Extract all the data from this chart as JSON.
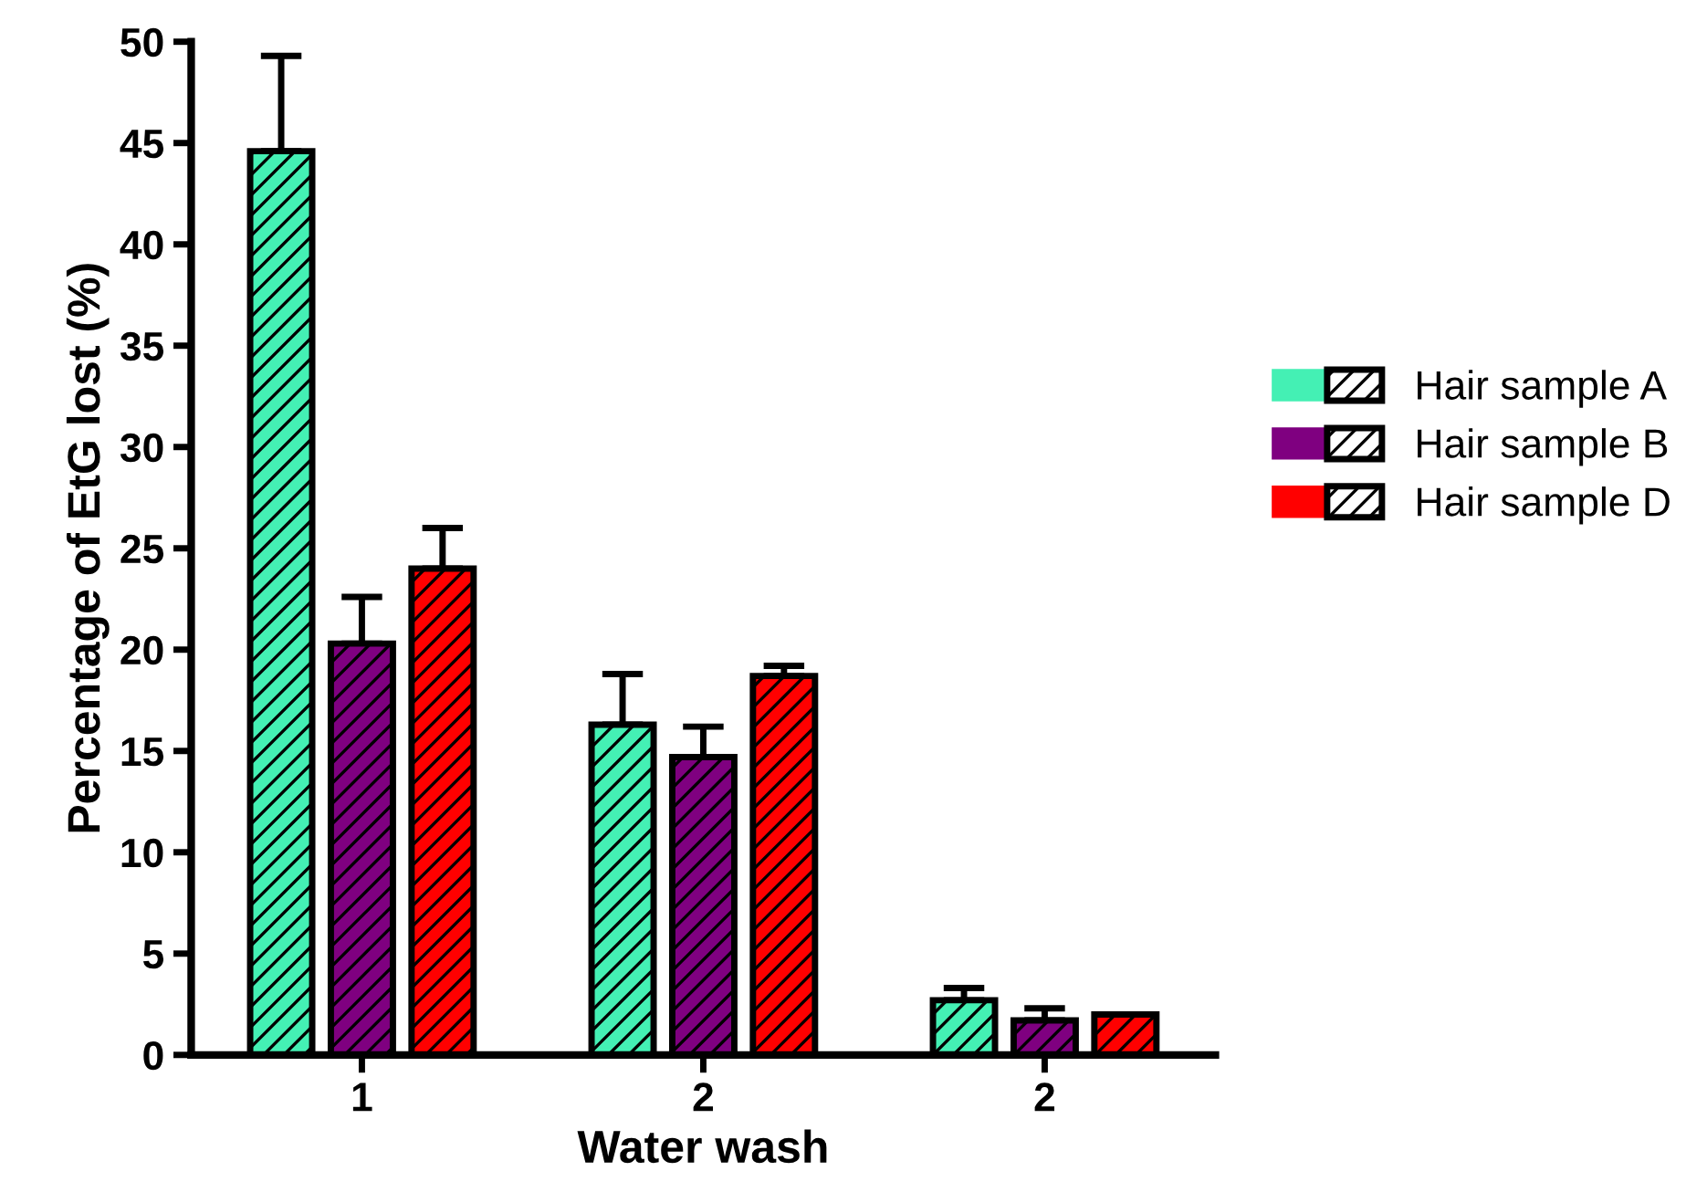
{
  "chart_data": {
    "type": "bar",
    "xlabel": "Water wash",
    "ylabel": "Percentage of EtG lost (%)",
    "categories": [
      "1",
      "2",
      "2"
    ],
    "series": [
      {
        "name": "Hair sample A",
        "color": "#44f0b4",
        "values": [
          44.6,
          16.3,
          2.7
        ],
        "errors": [
          [
            44.6,
            49.3
          ],
          [
            16.3,
            18.8
          ],
          [
            2.7,
            3.3
          ]
        ]
      },
      {
        "name": "Hair sample B",
        "color": "#7f0080",
        "values": [
          20.3,
          14.7,
          1.7
        ],
        "errors": [
          [
            20.3,
            22.6
          ],
          [
            14.7,
            16.2
          ],
          [
            1.7,
            2.3
          ]
        ]
      },
      {
        "name": "Hair sample D",
        "color": "#ff0000",
        "values": [
          24.0,
          18.7,
          2.0
        ],
        "errors": [
          [
            24.0,
            26.0
          ],
          [
            18.7,
            19.2
          ],
          null
        ]
      }
    ],
    "ylim": [
      0,
      50
    ],
    "yticks": [
      0,
      5,
      10,
      15,
      20,
      25,
      30,
      35,
      40,
      45,
      50
    ],
    "grid": false,
    "legend": "right"
  }
}
